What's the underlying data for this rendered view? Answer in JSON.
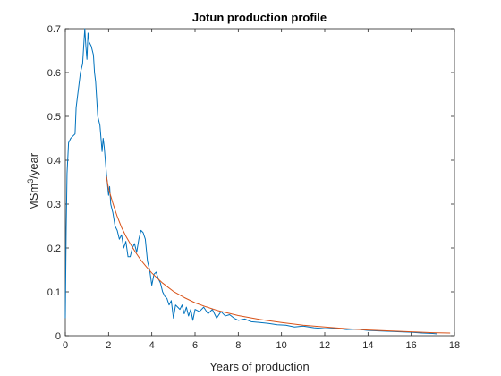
{
  "chart_data": {
    "type": "line",
    "title": "Jotun production profile",
    "xlabel": "Years of production",
    "ylabel": {
      "base": "MSm",
      "superscript": "3",
      "suffix": "/year"
    },
    "xlim": [
      0,
      18
    ],
    "ylim": [
      0,
      0.7
    ],
    "x_ticks": [
      "0",
      "2",
      "4",
      "6",
      "8",
      "10",
      "12",
      "14",
      "16",
      "18"
    ],
    "y_ticks": [
      "0",
      "0.1",
      "0.2",
      "0.3",
      "0.4",
      "0.5",
      "0.6",
      "0.7"
    ],
    "grid": false,
    "series": [
      {
        "color": "#0072BD",
        "x": [
          0.0,
          0.04,
          0.08,
          0.15,
          0.25,
          0.35,
          0.45,
          0.5,
          0.6,
          0.7,
          0.8,
          0.85,
          0.9,
          0.95,
          1.0,
          1.05,
          1.1,
          1.2,
          1.3,
          1.35,
          1.4,
          1.5,
          1.6,
          1.7,
          1.75,
          1.8,
          1.85,
          1.9,
          2.0,
          2.05,
          2.1,
          2.2,
          2.3,
          2.4,
          2.5,
          2.6,
          2.7,
          2.8,
          2.9,
          3.0,
          3.1,
          3.2,
          3.3,
          3.4,
          3.5,
          3.6,
          3.7,
          3.8,
          3.9,
          4.0,
          4.1,
          4.2,
          4.3,
          4.4,
          4.5,
          4.6,
          4.7,
          4.8,
          4.9,
          5.0,
          5.1,
          5.2,
          5.3,
          5.4,
          5.5,
          5.6,
          5.7,
          5.8,
          5.9,
          6.0,
          6.2,
          6.4,
          6.6,
          6.8,
          7.0,
          7.2,
          7.4,
          7.6,
          7.8,
          8.0,
          8.3,
          8.6,
          9.0,
          9.4,
          9.8,
          10.2,
          10.6,
          11.0,
          11.5,
          12.0,
          12.5,
          13.0,
          13.5,
          14.0,
          14.5,
          15.0,
          15.5,
          16.0,
          16.5,
          17.0,
          17.2
        ],
        "y": [
          0.04,
          0.24,
          0.37,
          0.44,
          0.45,
          0.455,
          0.46,
          0.52,
          0.56,
          0.6,
          0.62,
          0.66,
          0.7,
          0.66,
          0.63,
          0.69,
          0.67,
          0.66,
          0.64,
          0.6,
          0.58,
          0.5,
          0.48,
          0.42,
          0.45,
          0.43,
          0.4,
          0.37,
          0.32,
          0.34,
          0.3,
          0.28,
          0.25,
          0.24,
          0.22,
          0.23,
          0.2,
          0.215,
          0.18,
          0.18,
          0.2,
          0.21,
          0.19,
          0.22,
          0.24,
          0.235,
          0.22,
          0.17,
          0.15,
          0.115,
          0.14,
          0.145,
          0.13,
          0.12,
          0.1,
          0.09,
          0.085,
          0.07,
          0.08,
          0.04,
          0.07,
          0.065,
          0.06,
          0.07,
          0.05,
          0.065,
          0.045,
          0.06,
          0.035,
          0.06,
          0.055,
          0.065,
          0.05,
          0.06,
          0.04,
          0.055,
          0.045,
          0.048,
          0.04,
          0.035,
          0.038,
          0.032,
          0.03,
          0.028,
          0.025,
          0.024,
          0.02,
          0.022,
          0.018,
          0.016,
          0.017,
          0.014,
          0.015,
          0.012,
          0.011,
          0.01,
          0.009,
          0.008,
          0.006,
          0.005,
          0.004
        ]
      },
      {
        "color": "#D95319",
        "x": [
          1.9,
          2.0,
          2.2,
          2.4,
          2.6,
          2.8,
          3.0,
          3.25,
          3.5,
          3.75,
          4.0,
          4.5,
          5.0,
          5.5,
          6.0,
          6.5,
          7.0,
          8.0,
          9.0,
          10.0,
          11.0,
          12.0,
          13.0,
          14.0,
          15.0,
          16.0,
          17.0,
          17.8
        ],
        "y": [
          0.363,
          0.335,
          0.302,
          0.272,
          0.247,
          0.227,
          0.21,
          0.19,
          0.172,
          0.157,
          0.143,
          0.12,
          0.101,
          0.087,
          0.075,
          0.066,
          0.058,
          0.046,
          0.037,
          0.03,
          0.024,
          0.02,
          0.016,
          0.013,
          0.011,
          0.009,
          0.007,
          0.006
        ]
      }
    ]
  }
}
